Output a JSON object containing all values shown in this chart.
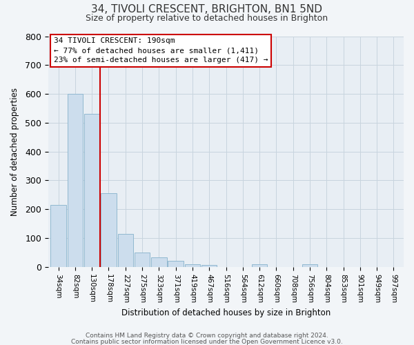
{
  "title": "34, TIVOLI CRESCENT, BRIGHTON, BN1 5ND",
  "subtitle": "Size of property relative to detached houses in Brighton",
  "xlabel": "Distribution of detached houses by size in Brighton",
  "ylabel": "Number of detached properties",
  "bar_labels": [
    "34sqm",
    "82sqm",
    "130sqm",
    "178sqm",
    "227sqm",
    "275sqm",
    "323sqm",
    "371sqm",
    "419sqm",
    "467sqm",
    "516sqm",
    "564sqm",
    "612sqm",
    "660sqm",
    "708sqm",
    "756sqm",
    "804sqm",
    "853sqm",
    "901sqm",
    "949sqm",
    "997sqm"
  ],
  "bar_values": [
    215,
    600,
    530,
    255,
    115,
    50,
    33,
    20,
    10,
    7,
    0,
    0,
    8,
    0,
    0,
    8,
    0,
    0,
    0,
    0,
    0
  ],
  "bar_color": "#ccdded",
  "bar_edge_color": "#90b8d0",
  "vline_color": "#cc0000",
  "vline_x_idx": 3,
  "ylim": [
    0,
    800
  ],
  "yticks": [
    0,
    100,
    200,
    300,
    400,
    500,
    600,
    700,
    800
  ],
  "annotation_title": "34 TIVOLI CRESCENT: 190sqm",
  "annotation_line1": "← 77% of detached houses are smaller (1,411)",
  "annotation_line2": "23% of semi-detached houses are larger (417) →",
  "footer1": "Contains HM Land Registry data © Crown copyright and database right 2024.",
  "footer2": "Contains public sector information licensed under the Open Government Licence v3.0.",
  "background_color": "#f2f5f8",
  "plot_bg_color": "#e8eef4"
}
